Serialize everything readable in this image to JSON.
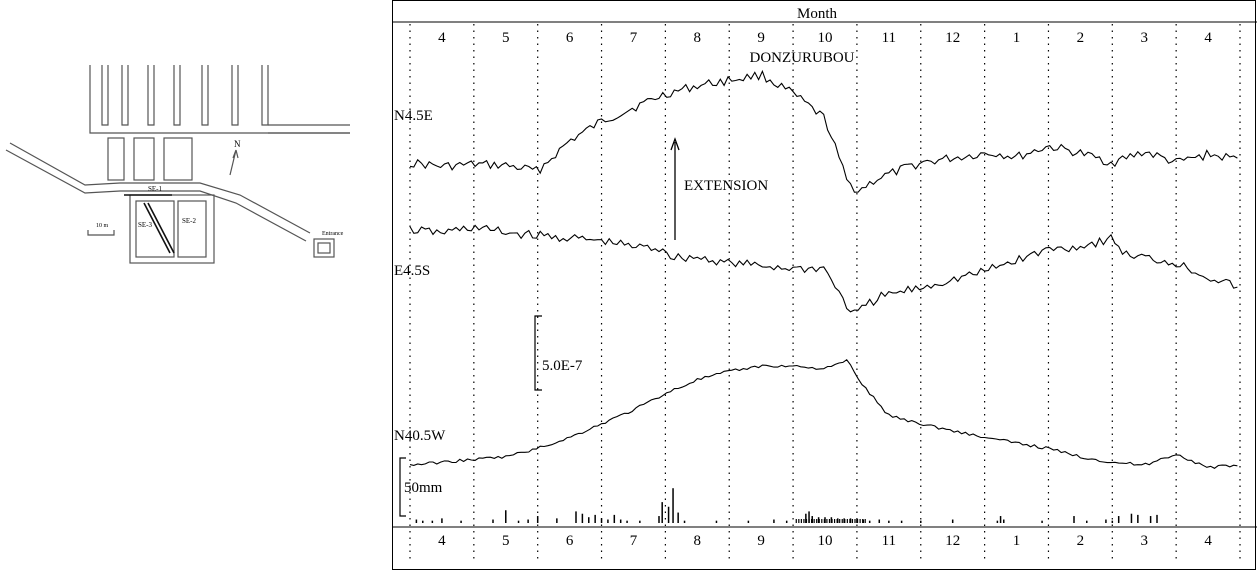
{
  "map": {
    "labels": {
      "se1": "SE-1",
      "se2": "SE-2",
      "se3": "SE-3",
      "north": "N",
      "scale": "10 m",
      "entrance": "Entrance"
    }
  },
  "chart_data": {
    "type": "line",
    "top_axis_title": "Month",
    "site_name": "DONZURUBOU",
    "months": [
      "4",
      "5",
      "6",
      "7",
      "8",
      "9",
      "10",
      "11",
      "12",
      "1",
      "2",
      "3",
      "4"
    ],
    "month_range": [
      0,
      13
    ],
    "series": [
      {
        "name": "N4.5E",
        "t": [
          0,
          0.5,
          1,
          1.5,
          2,
          2.5,
          3,
          3.5,
          4,
          4.5,
          5,
          5.5,
          6,
          6.5,
          6.85,
          7,
          7.05,
          7.1,
          7.3,
          8,
          9,
          9.2,
          9.5,
          10,
          10.5,
          11,
          11.5,
          12,
          12.5,
          13
        ],
        "v": [
          -0.05,
          -0.12,
          -0.08,
          -0.1,
          -0.2,
          0.35,
          0.7,
          0.95,
          1.2,
          1.35,
          1.45,
          1.55,
          1.2,
          0.75,
          -0.4,
          -0.55,
          -0.55,
          -0.5,
          -0.35,
          -0.05,
          0.12,
          0.12,
          0.05,
          0.25,
          0.12,
          -0.05,
          0.15,
          -0.05,
          0.1,
          0.0
        ]
      },
      {
        "name": "E4.5S",
        "t": [
          0,
          0.5,
          1,
          1.5,
          2,
          2.5,
          3,
          3.5,
          4,
          4.1,
          4.5,
          5,
          5.5,
          6,
          6.5,
          6.85,
          7,
          7.1,
          7.4,
          8,
          9,
          9.5,
          10,
          10.5,
          11,
          11.2,
          11.5,
          12,
          12.5,
          13
        ],
        "v": [
          0.0,
          -0.05,
          0.05,
          -0.05,
          -0.1,
          -0.15,
          -0.2,
          -0.3,
          -0.35,
          -0.5,
          -0.5,
          -0.6,
          -0.65,
          -0.7,
          -0.7,
          -1.4,
          -1.55,
          -1.4,
          -1.2,
          -1.05,
          -0.75,
          -0.55,
          -0.35,
          -0.3,
          -0.15,
          -0.45,
          -0.5,
          -0.6,
          -0.85,
          -1.05
        ]
      },
      {
        "name": "N40.5W",
        "t": [
          0,
          0.5,
          1,
          1.5,
          2,
          2.5,
          3,
          3.5,
          4,
          4.5,
          5,
          5.5,
          6,
          6.5,
          6.85,
          7,
          7.2,
          7.5,
          8,
          9,
          10,
          10.5,
          11,
          11.5,
          12,
          12.5,
          13
        ],
        "v": [
          0.0,
          0.05,
          0.1,
          0.15,
          0.3,
          0.5,
          0.75,
          1.0,
          1.3,
          1.55,
          1.7,
          1.8,
          1.8,
          1.75,
          1.9,
          1.6,
          1.3,
          0.9,
          0.75,
          0.5,
          0.3,
          0.15,
          0.05,
          0.0,
          0.2,
          -0.05,
          0.0
        ]
      }
    ],
    "scale_bar_label": "5.0E-7",
    "precip_label": "50mm",
    "precip_t": [
      0.1,
      0.2,
      0.35,
      0.5,
      0.8,
      1.3,
      1.5,
      1.7,
      1.85,
      2.0,
      2.3,
      2.6,
      2.7,
      2.8,
      2.9,
      3.0,
      3.1,
      3.2,
      3.3,
      3.4,
      3.6,
      3.9,
      3.95,
      4.05,
      4.12,
      4.2,
      4.3,
      4.8,
      5.3,
      5.7,
      5.9,
      6.2,
      6.25,
      6.3,
      6.4,
      6.5,
      6.6,
      6.7,
      6.8,
      6.9,
      7.0,
      7.1,
      7.2,
      7.35,
      7.5,
      7.7,
      8.0,
      8.5,
      9.2,
      9.25,
      9.3,
      9.9,
      10.4,
      10.6,
      10.9,
      11.0,
      11.1,
      11.3,
      11.4,
      11.6,
      11.7
    ],
    "precip_v": [
      3,
      2,
      2,
      4,
      2,
      3,
      11,
      2,
      3,
      6,
      4,
      10,
      8,
      5,
      7,
      4,
      3,
      7,
      3,
      2,
      2,
      6,
      18,
      14,
      30,
      9,
      2,
      2,
      2,
      3,
      2,
      8,
      10,
      6,
      5,
      5,
      5,
      4,
      4,
      4,
      3,
      3,
      2,
      3,
      2,
      2,
      2,
      3,
      2,
      6,
      3,
      2,
      6,
      2,
      3,
      2,
      6,
      8,
      7,
      6,
      7
    ],
    "precip_max": 50
  },
  "annotations": {
    "extension": "EXTENSION"
  }
}
